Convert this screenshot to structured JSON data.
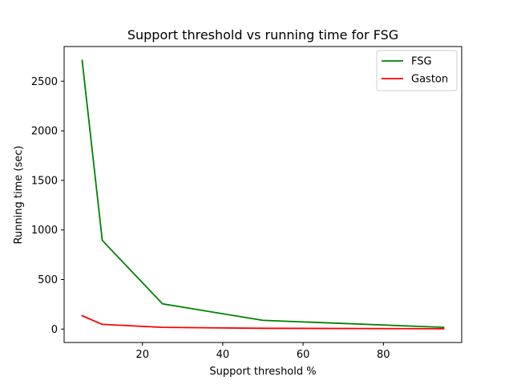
{
  "chart_data": {
    "type": "line",
    "title": "Support threshold vs running time for FSG",
    "xlabel": "Support threshold %",
    "ylabel": "Running time (sec)",
    "xlim": [
      0.5,
      99.5
    ],
    "ylim": [
      -135,
      2850
    ],
    "xticks": [
      20,
      40,
      60,
      80
    ],
    "yticks": [
      0,
      500,
      1000,
      1500,
      2000,
      2500
    ],
    "grid": false,
    "legend_position": "top-right",
    "series": [
      {
        "name": "FSG",
        "color": "#008000",
        "x": [
          5,
          10,
          25,
          50,
          95
        ],
        "y": [
          2710,
          895,
          255,
          88,
          18
        ]
      },
      {
        "name": "Gaston",
        "color": "#ff0000",
        "x": [
          5,
          10,
          25,
          50,
          95
        ],
        "y": [
          135,
          48,
          18,
          8,
          3
        ]
      }
    ]
  }
}
